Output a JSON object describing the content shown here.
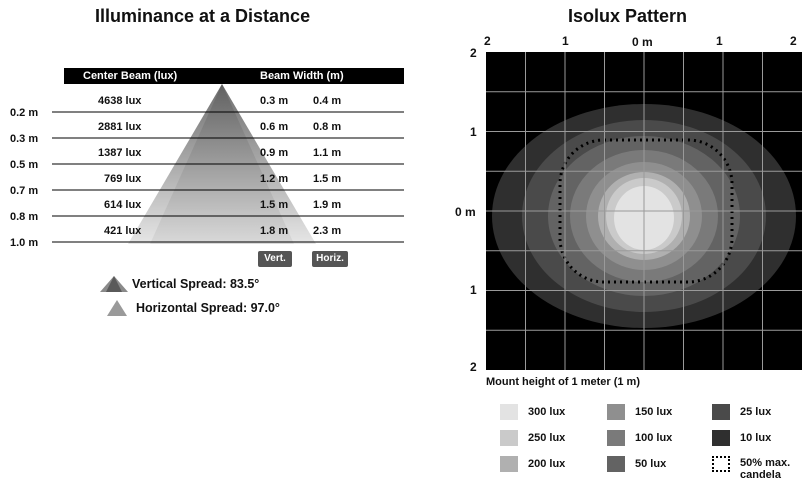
{
  "left": {
    "title": "Illuminance at a Distance",
    "header": {
      "center_beam": "Center Beam (lux)",
      "beam_width": "Beam Width (m)"
    },
    "rows": [
      {
        "distance": "0.2 m",
        "lux": "4638 lux",
        "vert": "0.3 m",
        "horiz": "0.4 m"
      },
      {
        "distance": "0.3 m",
        "lux": "2881 lux",
        "vert": "0.6 m",
        "horiz": "0.8 m"
      },
      {
        "distance": "0.5 m",
        "lux": "1387 lux",
        "vert": "0.9 m",
        "horiz": "1.1 m"
      },
      {
        "distance": "0.7 m",
        "lux": "769 lux",
        "vert": "1.2 m",
        "horiz": "1.5 m"
      },
      {
        "distance": "0.8 m",
        "lux": "614 lux",
        "vert": "1.5 m",
        "horiz": "1.9 m"
      },
      {
        "distance": "1.0 m",
        "lux": "421 lux",
        "vert": "1.8 m",
        "horiz": "2.3 m"
      }
    ],
    "badges": {
      "vert": "Vert.",
      "horiz": "Horiz."
    },
    "vertical_spread": "Vertical Spread: 83.5°",
    "horizontal_spread": "Horizontal Spread: 97.0°"
  },
  "right": {
    "title": "Isolux Pattern",
    "top_labels": [
      "2",
      "1",
      "0 m",
      "1",
      "2"
    ],
    "left_labels": [
      "2",
      "1",
      "0 m",
      "1",
      "2"
    ],
    "mount_caption": "Mount height of 1 meter (1 m)",
    "legend": [
      {
        "label": "300 lux",
        "color": "#e3e3e3"
      },
      {
        "label": "150 lux",
        "color": "#8f8f8f"
      },
      {
        "label": "25 lux",
        "color": "#4a4a4a"
      },
      {
        "label": "250 lux",
        "color": "#cacaca"
      },
      {
        "label": "100 lux",
        "color": "#7a7a7a"
      },
      {
        "label": "10 lux",
        "color": "#2f2f2f"
      },
      {
        "label": "200 lux",
        "color": "#b0b0b0"
      },
      {
        "label": "50 lux",
        "color": "#636363"
      },
      {
        "label": "50% max. candela",
        "color": "dotted"
      }
    ]
  }
}
